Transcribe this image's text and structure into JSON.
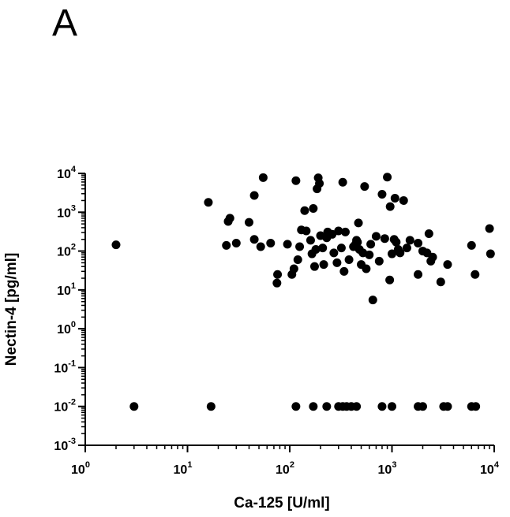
{
  "panel_label": "A",
  "chart_data": {
    "type": "scatter",
    "title": "",
    "xlabel": "Ca-125 [U/ml]",
    "ylabel": "Nectin-4 [pg/ml]",
    "x_scale": "log",
    "y_scale": "log",
    "xlim": [
      1,
      10000
    ],
    "ylim": [
      0.001,
      10000
    ],
    "x_ticks": [
      {
        "value": 1,
        "base": "10",
        "exp": "0"
      },
      {
        "value": 10,
        "base": "10",
        "exp": "1"
      },
      {
        "value": 100,
        "base": "10",
        "exp": "2"
      },
      {
        "value": 1000,
        "base": "10",
        "exp": "3"
      },
      {
        "value": 10000,
        "base": "10",
        "exp": "4"
      }
    ],
    "y_ticks": [
      {
        "value": 10000,
        "base": "10",
        "exp": "4"
      },
      {
        "value": 1000,
        "base": "10",
        "exp": "3"
      },
      {
        "value": 100,
        "base": "10",
        "exp": "2"
      },
      {
        "value": 10,
        "base": "10",
        "exp": "1"
      },
      {
        "value": 1,
        "base": "10",
        "exp": "0"
      },
      {
        "value": 0.1,
        "base": "10",
        "exp": "-1"
      },
      {
        "value": 0.01,
        "base": "10",
        "exp": "-2"
      },
      {
        "value": 0.001,
        "base": "10",
        "exp": "-3"
      }
    ],
    "grid": false,
    "legend": "none",
    "marker_color": "#000000",
    "points": [
      [
        2,
        145
      ],
      [
        16,
        1800
      ],
      [
        24,
        140
      ],
      [
        25,
        580
      ],
      [
        26,
        700
      ],
      [
        30,
        160
      ],
      [
        40,
        550
      ],
      [
        45,
        200
      ],
      [
        45,
        2700
      ],
      [
        52,
        130
      ],
      [
        55,
        7800
      ],
      [
        65,
        160
      ],
      [
        75,
        15
      ],
      [
        76,
        25
      ],
      [
        95,
        150
      ],
      [
        105,
        25
      ],
      [
        110,
        35
      ],
      [
        115,
        6500
      ],
      [
        120,
        60
      ],
      [
        125,
        130
      ],
      [
        130,
        350
      ],
      [
        140,
        1100
      ],
      [
        145,
        330
      ],
      [
        160,
        190
      ],
      [
        165,
        85
      ],
      [
        170,
        1250
      ],
      [
        175,
        40
      ],
      [
        180,
        110
      ],
      [
        185,
        4000
      ],
      [
        190,
        7700
      ],
      [
        195,
        5500
      ],
      [
        200,
        250
      ],
      [
        210,
        120
      ],
      [
        215,
        45
      ],
      [
        230,
        220
      ],
      [
        235,
        310
      ],
      [
        260,
        270
      ],
      [
        270,
        90
      ],
      [
        290,
        50
      ],
      [
        300,
        330
      ],
      [
        320,
        120
      ],
      [
        330,
        5900
      ],
      [
        340,
        30
      ],
      [
        350,
        310
      ],
      [
        380,
        60
      ],
      [
        420,
        130
      ],
      [
        440,
        150
      ],
      [
        450,
        190
      ],
      [
        460,
        170
      ],
      [
        470,
        530
      ],
      [
        480,
        110
      ],
      [
        500,
        45
      ],
      [
        520,
        90
      ],
      [
        540,
        4600
      ],
      [
        560,
        35
      ],
      [
        600,
        80
      ],
      [
        620,
        150
      ],
      [
        650,
        5.5
      ],
      [
        700,
        240
      ],
      [
        750,
        55
      ],
      [
        800,
        2900
      ],
      [
        850,
        210
      ],
      [
        900,
        8000
      ],
      [
        950,
        18
      ],
      [
        960,
        1400
      ],
      [
        1000,
        85
      ],
      [
        1050,
        200
      ],
      [
        1070,
        2300
      ],
      [
        1100,
        170
      ],
      [
        1150,
        110
      ],
      [
        1200,
        90
      ],
      [
        1300,
        2000
      ],
      [
        1400,
        120
      ],
      [
        1500,
        190
      ],
      [
        1800,
        160
      ],
      [
        1800,
        25
      ],
      [
        2000,
        100
      ],
      [
        2200,
        90
      ],
      [
        2300,
        280
      ],
      [
        2400,
        55
      ],
      [
        2500,
        70
      ],
      [
        3000,
        16
      ],
      [
        3500,
        45
      ],
      [
        6000,
        140
      ],
      [
        6500,
        25
      ],
      [
        9000,
        380
      ],
      [
        9200,
        85
      ],
      [
        3,
        0.01
      ],
      [
        17,
        0.01
      ],
      [
        115,
        0.01
      ],
      [
        170,
        0.01
      ],
      [
        230,
        0.01
      ],
      [
        300,
        0.01
      ],
      [
        330,
        0.01
      ],
      [
        360,
        0.01
      ],
      [
        400,
        0.01
      ],
      [
        450,
        0.01
      ],
      [
        800,
        0.01
      ],
      [
        1000,
        0.01
      ],
      [
        1800,
        0.01
      ],
      [
        2000,
        0.01
      ],
      [
        3200,
        0.01
      ],
      [
        3500,
        0.01
      ],
      [
        6000,
        0.01
      ],
      [
        6600,
        0.01
      ]
    ]
  }
}
